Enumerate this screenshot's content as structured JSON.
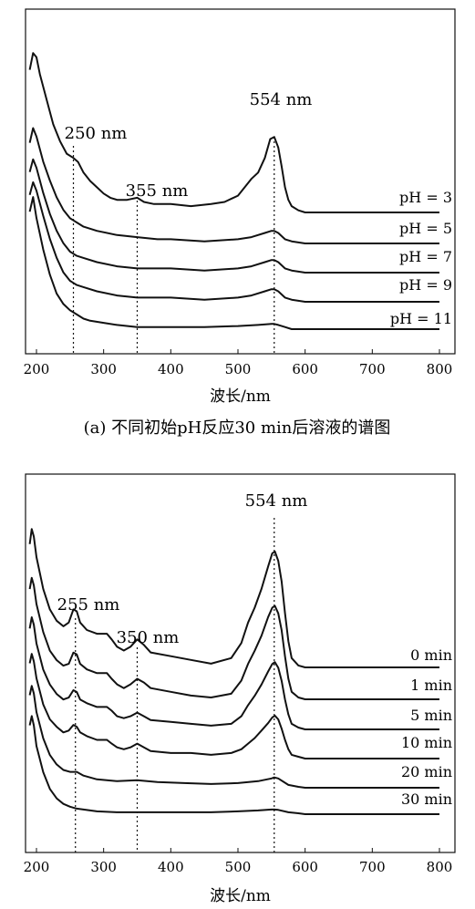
{
  "chart_data": [
    {
      "type": "line",
      "caption": "(a) 不同初始pH反应30 min后溶液的谱图",
      "xlabel": "波长/nm",
      "xlim": [
        190,
        800
      ],
      "xticks": [
        "200",
        "300",
        "400",
        "500",
        "600",
        "700",
        "800"
      ],
      "ylabel": "",
      "grid": false,
      "annotations": [
        "250 nm",
        "355 nm",
        "554 nm"
      ],
      "reference_lines_nm": [
        255,
        350,
        554
      ],
      "series": [
        {
          "name": "pH = 3",
          "x": [
            190,
            195,
            200,
            205,
            215,
            225,
            235,
            245,
            255,
            262,
            270,
            280,
            290,
            300,
            310,
            320,
            335,
            350,
            360,
            375,
            400,
            430,
            460,
            480,
            500,
            510,
            520,
            530,
            540,
            548,
            554,
            560,
            565,
            570,
            575,
            580,
            590,
            600,
            650,
            700,
            800
          ],
          "y": [
            0.92,
            1.0,
            0.98,
            0.9,
            0.78,
            0.66,
            0.58,
            0.52,
            0.5,
            0.48,
            0.43,
            0.39,
            0.36,
            0.33,
            0.31,
            0.3,
            0.3,
            0.31,
            0.29,
            0.28,
            0.28,
            0.27,
            0.28,
            0.29,
            0.32,
            0.36,
            0.4,
            0.43,
            0.5,
            0.59,
            0.6,
            0.55,
            0.46,
            0.36,
            0.3,
            0.27,
            0.25,
            0.24,
            0.24,
            0.24,
            0.24
          ]
        },
        {
          "name": "pH = 5",
          "x": [
            190,
            195,
            200,
            210,
            220,
            230,
            240,
            250,
            255,
            260,
            270,
            290,
            320,
            350,
            380,
            400,
            450,
            500,
            520,
            540,
            550,
            554,
            560,
            570,
            580,
            600,
            700,
            800
          ],
          "y": [
            0.67,
            0.74,
            0.7,
            0.58,
            0.49,
            0.41,
            0.35,
            0.31,
            0.3,
            0.29,
            0.27,
            0.25,
            0.23,
            0.22,
            0.21,
            0.21,
            0.2,
            0.21,
            0.22,
            0.24,
            0.25,
            0.25,
            0.24,
            0.21,
            0.2,
            0.19,
            0.19,
            0.19
          ]
        },
        {
          "name": "pH = 7",
          "x": [
            190,
            195,
            200,
            210,
            220,
            230,
            240,
            250,
            255,
            260,
            270,
            290,
            320,
            350,
            380,
            400,
            450,
            500,
            520,
            540,
            550,
            554,
            560,
            570,
            580,
            600,
            700,
            800
          ],
          "y": [
            0.62,
            0.68,
            0.64,
            0.52,
            0.42,
            0.34,
            0.28,
            0.24,
            0.23,
            0.22,
            0.21,
            0.19,
            0.17,
            0.16,
            0.16,
            0.16,
            0.15,
            0.16,
            0.17,
            0.19,
            0.2,
            0.2,
            0.19,
            0.16,
            0.15,
            0.14,
            0.14,
            0.14
          ]
        },
        {
          "name": "pH = 9",
          "x": [
            190,
            195,
            200,
            210,
            220,
            230,
            240,
            250,
            255,
            260,
            270,
            290,
            320,
            350,
            380,
            400,
            450,
            500,
            520,
            540,
            550,
            554,
            560,
            570,
            580,
            600,
            700,
            800
          ],
          "y": [
            0.6,
            0.66,
            0.62,
            0.5,
            0.39,
            0.3,
            0.23,
            0.19,
            0.18,
            0.17,
            0.16,
            0.14,
            0.12,
            0.11,
            0.11,
            0.11,
            0.1,
            0.11,
            0.12,
            0.14,
            0.15,
            0.15,
            0.14,
            0.11,
            0.1,
            0.09,
            0.09,
            0.09
          ]
        },
        {
          "name": "pH = 11",
          "x": [
            190,
            195,
            200,
            210,
            220,
            230,
            240,
            250,
            260,
            270,
            280,
            300,
            320,
            350,
            400,
            450,
            500,
            530,
            550,
            554,
            560,
            570,
            580,
            600,
            700,
            800
          ],
          "y": [
            0.58,
            0.65,
            0.55,
            0.4,
            0.28,
            0.19,
            0.14,
            0.11,
            0.09,
            0.07,
            0.06,
            0.05,
            0.04,
            0.03,
            0.03,
            0.03,
            0.035,
            0.04,
            0.045,
            0.045,
            0.04,
            0.03,
            0.02,
            0.02,
            0.02,
            0.02
          ]
        }
      ]
    },
    {
      "type": "line",
      "caption": "(b) 初始pH=11在不同反应时间下的谱图",
      "xlabel": "波长/nm",
      "xlim": [
        190,
        800
      ],
      "xticks": [
        "200",
        "300",
        "400",
        "500",
        "600",
        "700",
        "800"
      ],
      "ylabel": "",
      "grid": false,
      "annotations": [
        "255 nm",
        "350 nm",
        "554 nm"
      ],
      "reference_lines_nm": [
        258,
        350,
        554
      ],
      "series": [
        {
          "name": "0 min",
          "x": [
            190,
            193,
            196,
            200,
            210,
            220,
            230,
            240,
            248,
            255,
            260,
            265,
            275,
            290,
            305,
            312,
            320,
            330,
            340,
            350,
            360,
            370,
            400,
            430,
            460,
            490,
            505,
            515,
            525,
            535,
            545,
            551,
            555,
            560,
            565,
            570,
            575,
            580,
            590,
            600,
            700,
            800
          ],
          "y": [
            0.92,
            1.0,
            0.96,
            0.85,
            0.68,
            0.57,
            0.51,
            0.48,
            0.5,
            0.57,
            0.56,
            0.5,
            0.46,
            0.44,
            0.44,
            0.41,
            0.37,
            0.35,
            0.37,
            0.41,
            0.38,
            0.34,
            0.32,
            0.3,
            0.28,
            0.31,
            0.39,
            0.5,
            0.58,
            0.68,
            0.8,
            0.87,
            0.88,
            0.83,
            0.72,
            0.55,
            0.4,
            0.31,
            0.27,
            0.26,
            0.26,
            0.26
          ]
        },
        {
          "name": "1 min",
          "x": [
            190,
            193,
            196,
            200,
            210,
            220,
            230,
            240,
            248,
            255,
            260,
            265,
            275,
            290,
            305,
            312,
            320,
            330,
            340,
            350,
            360,
            370,
            400,
            430,
            460,
            490,
            505,
            515,
            525,
            535,
            545,
            551,
            555,
            560,
            565,
            570,
            575,
            580,
            590,
            600,
            700,
            800
          ],
          "y": [
            0.78,
            0.84,
            0.8,
            0.7,
            0.55,
            0.45,
            0.4,
            0.37,
            0.38,
            0.44,
            0.43,
            0.38,
            0.35,
            0.33,
            0.33,
            0.3,
            0.27,
            0.25,
            0.27,
            0.3,
            0.28,
            0.25,
            0.23,
            0.21,
            0.2,
            0.22,
            0.29,
            0.38,
            0.45,
            0.53,
            0.63,
            0.68,
            0.69,
            0.65,
            0.56,
            0.42,
            0.3,
            0.23,
            0.2,
            0.19,
            0.19,
            0.19
          ]
        },
        {
          "name": "5 min",
          "x": [
            190,
            193,
            196,
            200,
            210,
            220,
            230,
            240,
            248,
            255,
            260,
            265,
            275,
            290,
            305,
            312,
            320,
            330,
            340,
            350,
            360,
            370,
            400,
            430,
            460,
            490,
            505,
            515,
            525,
            535,
            545,
            551,
            555,
            560,
            565,
            570,
            575,
            580,
            590,
            600,
            700,
            800
          ],
          "y": [
            0.66,
            0.72,
            0.68,
            0.58,
            0.44,
            0.36,
            0.31,
            0.28,
            0.29,
            0.33,
            0.32,
            0.28,
            0.26,
            0.24,
            0.24,
            0.22,
            0.19,
            0.18,
            0.19,
            0.21,
            0.19,
            0.17,
            0.16,
            0.15,
            0.14,
            0.15,
            0.19,
            0.25,
            0.3,
            0.36,
            0.43,
            0.47,
            0.48,
            0.45,
            0.38,
            0.28,
            0.2,
            0.15,
            0.13,
            0.12,
            0.12,
            0.12
          ]
        },
        {
          "name": "10 min",
          "x": [
            190,
            193,
            196,
            200,
            210,
            220,
            230,
            240,
            248,
            255,
            260,
            265,
            275,
            290,
            305,
            312,
            320,
            330,
            340,
            350,
            360,
            370,
            400,
            430,
            460,
            490,
            505,
            515,
            525,
            535,
            545,
            551,
            555,
            560,
            565,
            570,
            575,
            580,
            590,
            600,
            700,
            800
          ],
          "y": [
            0.58,
            0.63,
            0.59,
            0.5,
            0.36,
            0.28,
            0.24,
            0.21,
            0.22,
            0.25,
            0.24,
            0.21,
            0.19,
            0.17,
            0.17,
            0.15,
            0.13,
            0.12,
            0.13,
            0.15,
            0.13,
            0.11,
            0.1,
            0.1,
            0.09,
            0.1,
            0.12,
            0.15,
            0.18,
            0.22,
            0.26,
            0.29,
            0.3,
            0.28,
            0.23,
            0.17,
            0.12,
            0.09,
            0.08,
            0.07,
            0.07,
            0.07
          ]
        },
        {
          "name": "20 min",
          "x": [
            190,
            193,
            196,
            200,
            210,
            220,
            230,
            240,
            250,
            260,
            270,
            290,
            320,
            350,
            380,
            420,
            460,
            500,
            530,
            550,
            554,
            560,
            575,
            590,
            600,
            700,
            800
          ],
          "y": [
            0.53,
            0.58,
            0.54,
            0.44,
            0.3,
            0.21,
            0.16,
            0.13,
            0.12,
            0.12,
            0.1,
            0.08,
            0.07,
            0.075,
            0.065,
            0.06,
            0.055,
            0.06,
            0.07,
            0.085,
            0.09,
            0.085,
            0.05,
            0.04,
            0.035,
            0.035,
            0.035
          ]
        },
        {
          "name": "30 min",
          "x": [
            190,
            193,
            196,
            200,
            210,
            220,
            230,
            240,
            250,
            260,
            270,
            290,
            320,
            350,
            380,
            420,
            460,
            500,
            530,
            550,
            554,
            560,
            575,
            590,
            600,
            700,
            800
          ],
          "y": [
            0.48,
            0.53,
            0.48,
            0.37,
            0.23,
            0.14,
            0.09,
            0.06,
            0.045,
            0.035,
            0.03,
            0.02,
            0.015,
            0.015,
            0.015,
            0.015,
            0.015,
            0.02,
            0.025,
            0.03,
            0.03,
            0.028,
            0.015,
            0.01,
            0.005,
            0.005,
            0.005
          ]
        }
      ]
    }
  ]
}
